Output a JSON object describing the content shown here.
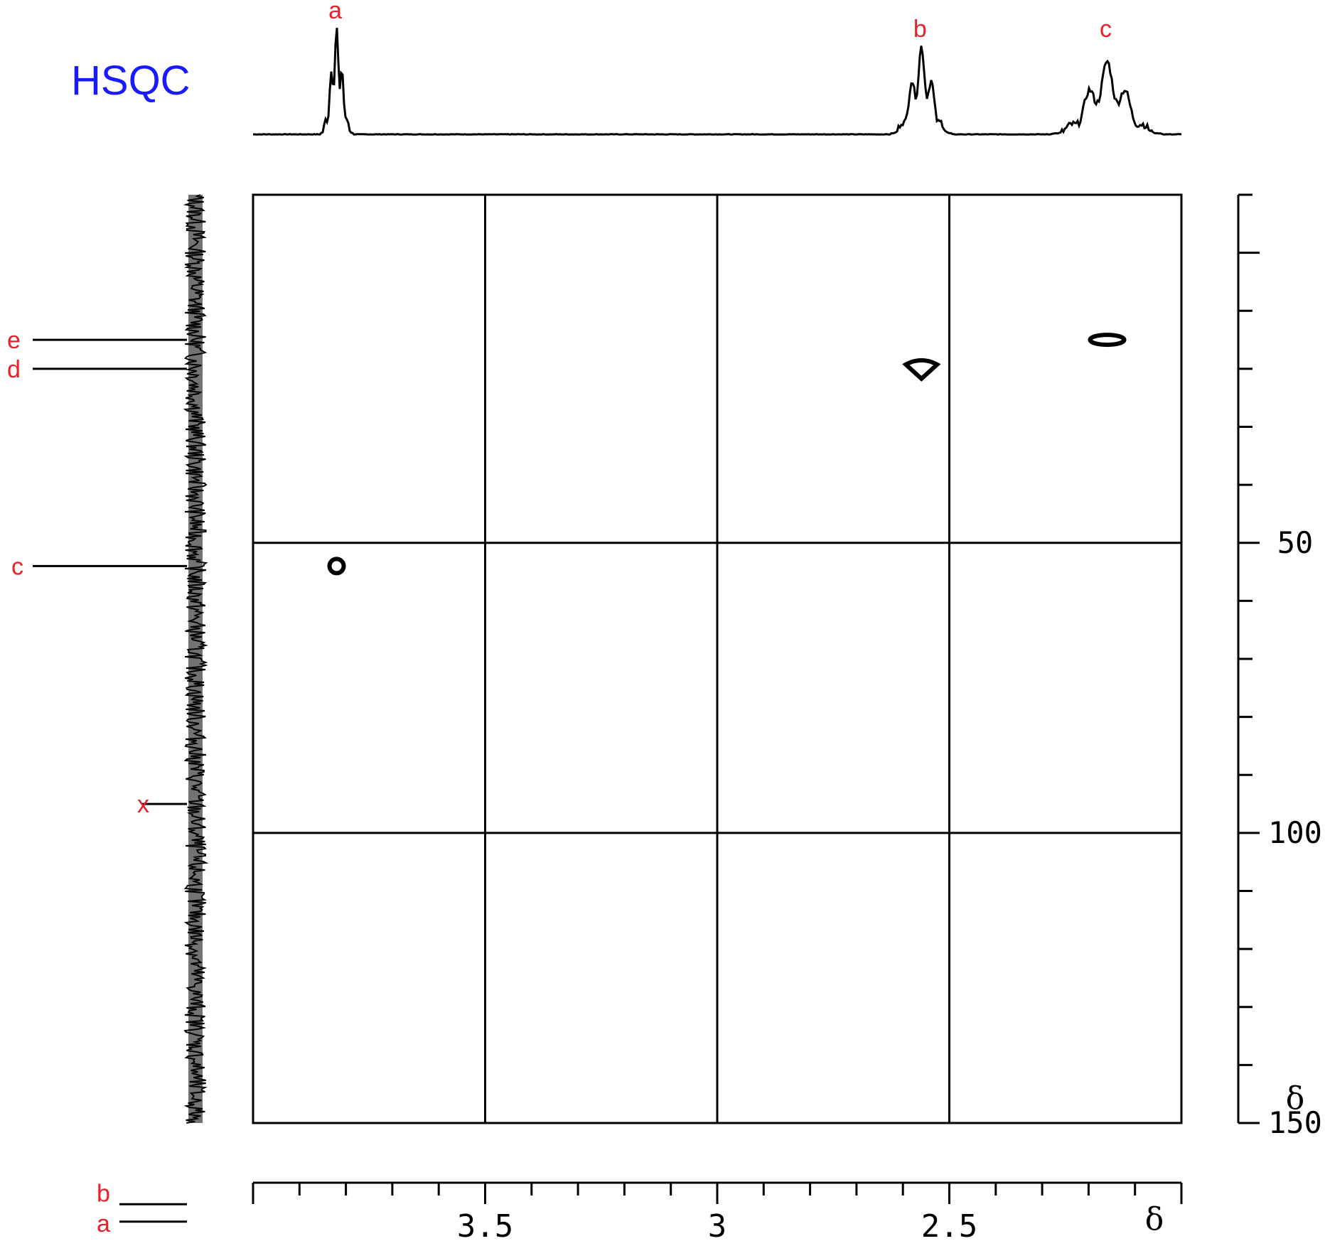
{
  "title": "HSQC",
  "colors": {
    "title": "#1a1aff",
    "labels": "#e8212b",
    "ink": "#000000"
  },
  "chart_data": {
    "type": "heatmap",
    "title": "HSQC",
    "x_axis": {
      "label": "δ",
      "range": [
        4.0,
        2.0
      ],
      "reversed": true,
      "ticks": [
        3.5,
        3.0,
        2.5
      ],
      "tick_labels": [
        "3.5",
        "3.0",
        "2.5"
      ]
    },
    "y_axis": {
      "label": "δ",
      "range": [
        -10,
        150
      ],
      "reversed": true,
      "ticks": [
        50,
        100,
        150
      ],
      "tick_labels": [
        "50",
        "100",
        "150"
      ]
    },
    "grid": true,
    "proton_peaks": [
      {
        "label": "a",
        "x": 3.82
      },
      {
        "label": "b",
        "x": 2.56
      },
      {
        "label": "c",
        "x": 2.16
      }
    ],
    "carbon_peaks": [
      {
        "label": "e",
        "y": 15
      },
      {
        "label": "d",
        "y": 20
      },
      {
        "label": "c",
        "y": 54
      },
      {
        "label": "x",
        "y": 95
      },
      {
        "label": "b",
        "y": 164
      },
      {
        "label": "a",
        "y": 167
      }
    ],
    "cross_peaks": [
      {
        "x": 3.82,
        "y": 54
      },
      {
        "x": 2.56,
        "y": 20
      },
      {
        "x": 2.16,
        "y": 15
      }
    ]
  }
}
